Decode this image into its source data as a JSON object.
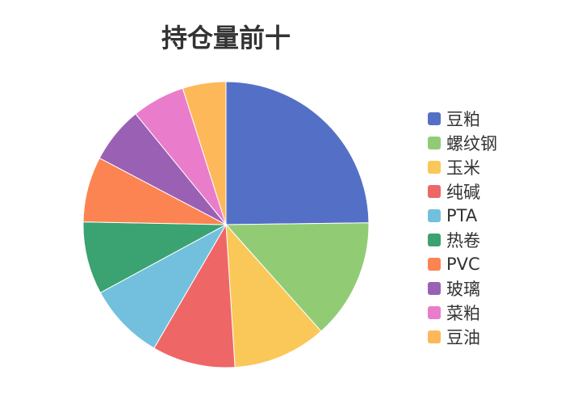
{
  "chart_data": {
    "type": "pie",
    "title": "持仓量前十",
    "legend_position": "right",
    "categories": [
      "豆粕",
      "螺纹钢",
      "玉米",
      "纯碱",
      "PTA",
      "热卷",
      "PVC",
      "玻璃",
      "菜粕",
      "豆油"
    ],
    "values": [
      24.8,
      13.6,
      10.6,
      9.4,
      8.7,
      8.2,
      7.4,
      6.4,
      6.0,
      4.9
    ],
    "colors": [
      "#5470c6",
      "#91cc75",
      "#fac858",
      "#ee6666",
      "#73c0de",
      "#3ba272",
      "#fc8452",
      "#9a60b4",
      "#ea7ccc",
      "#fdb85a"
    ]
  }
}
